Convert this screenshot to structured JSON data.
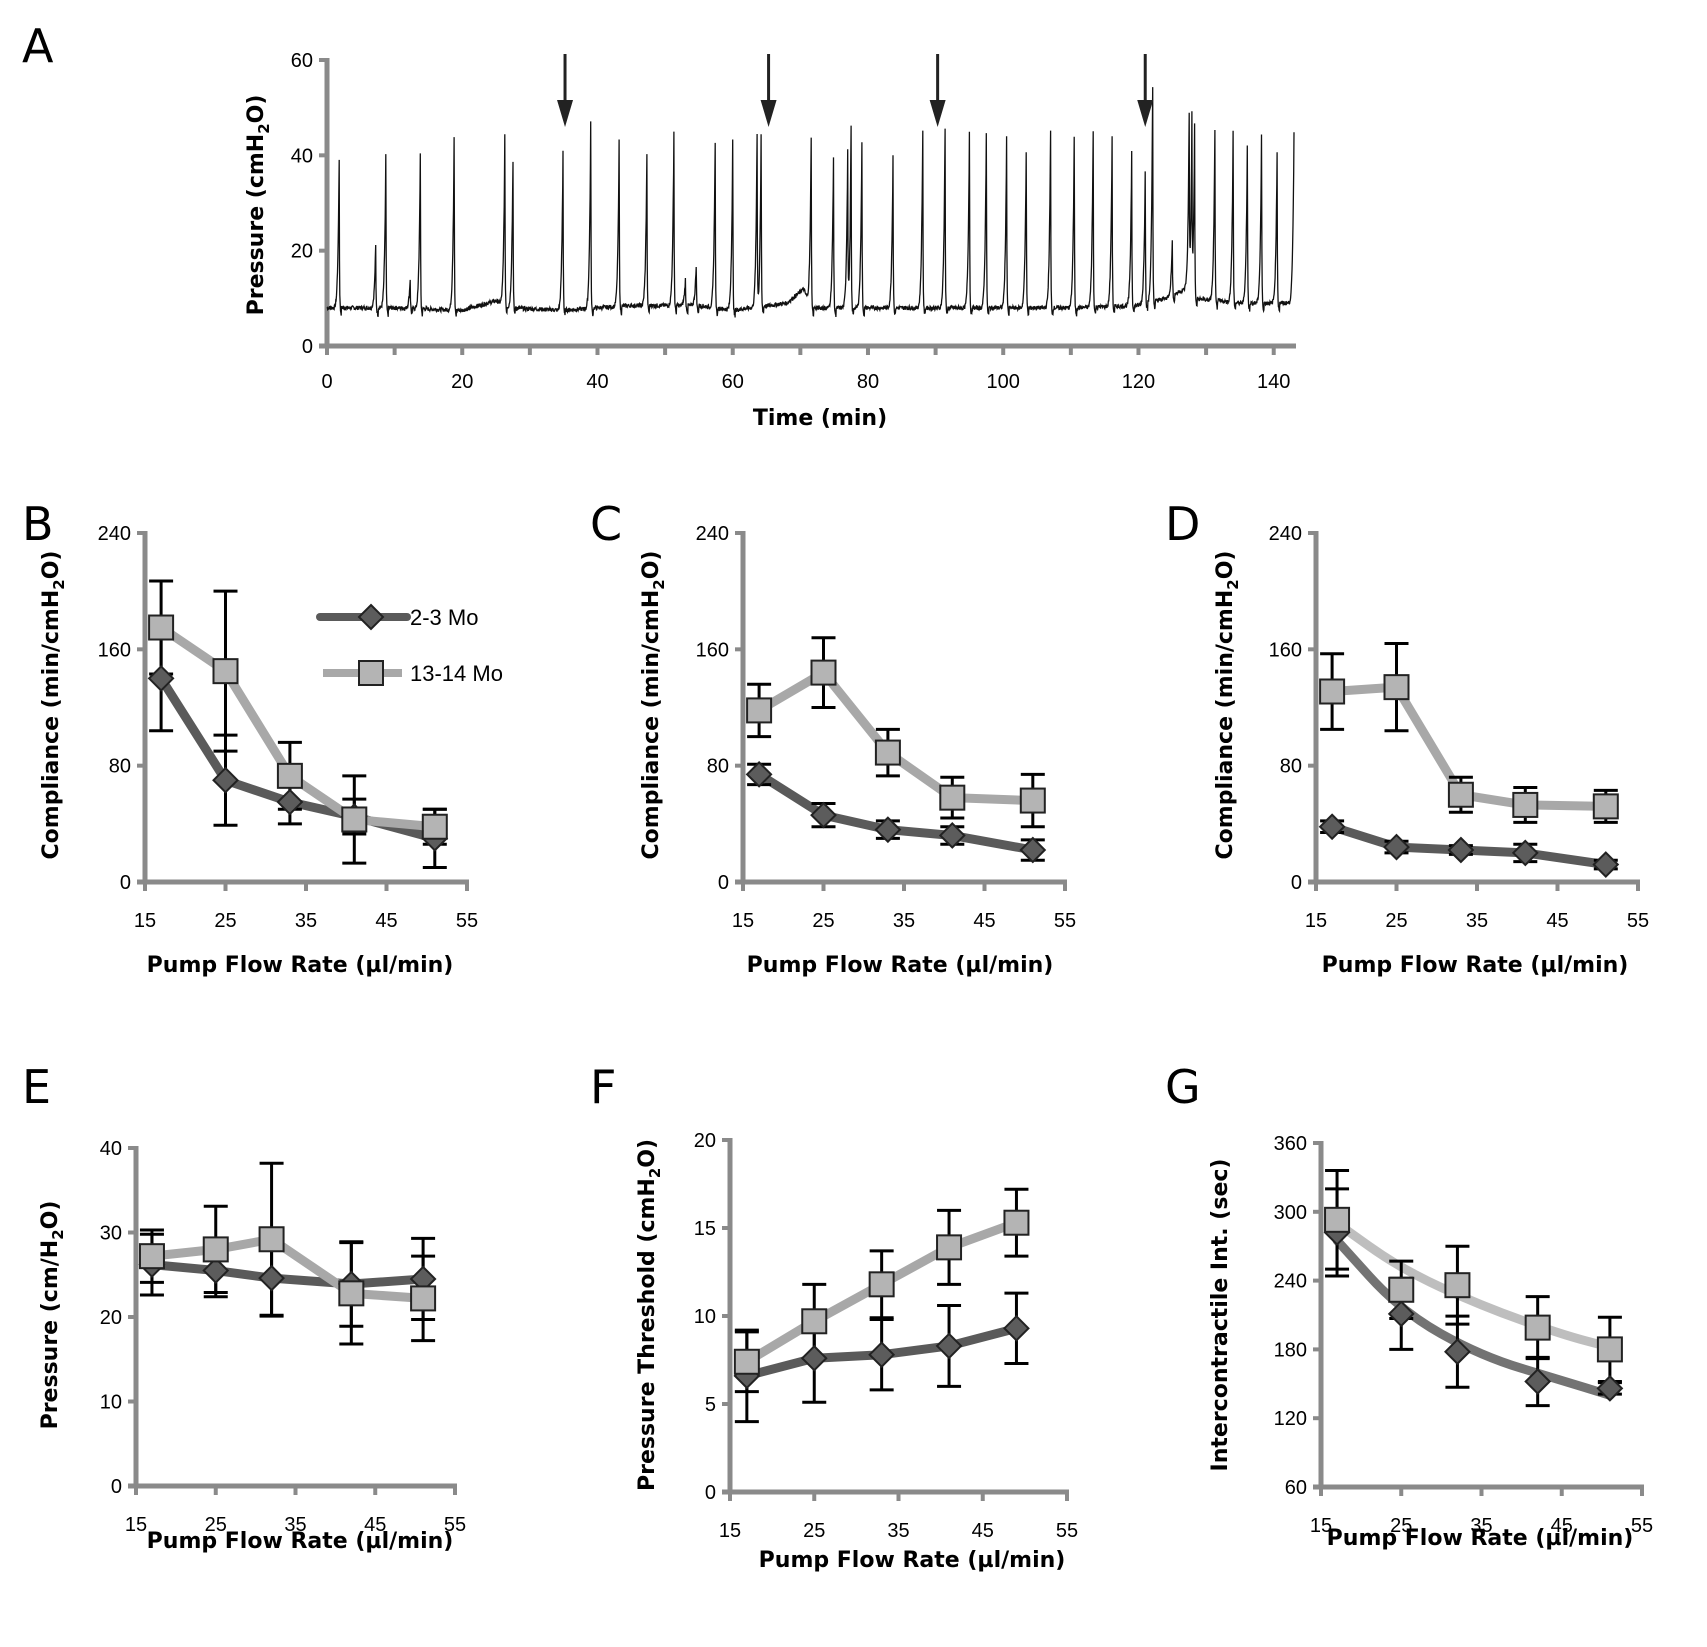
{
  "figure": {
    "colors": {
      "axis": "#8a8a8a",
      "trace": "#111111",
      "arrow": "#222222",
      "young": "#5a5a5a",
      "old": "#a8a8a8",
      "young_marker": "#5c5c5c",
      "old_marker": "#b4b4b4",
      "errorbar": "#000000"
    },
    "legend": {
      "young_label": "2-3 Mo",
      "old_label": "13-14 Mo"
    }
  },
  "chart_data": [
    {
      "id": "A",
      "panel_label": "A",
      "type": "line",
      "title": "",
      "xlabel": "Time (min)",
      "ylabel": "Pressure (cmH2O)",
      "ylabel_parts": [
        "Pressure (cmH",
        "2",
        "O)"
      ],
      "xlim": [
        0,
        143
      ],
      "ylim": [
        0,
        60
      ],
      "xticks": [
        0,
        20,
        40,
        60,
        80,
        100,
        120,
        140
      ],
      "xticks_minor": [
        10,
        30,
        50,
        70,
        90,
        110,
        130
      ],
      "yticks": [
        0,
        20,
        40,
        60
      ],
      "baseline_cmH2O": [
        [
          0,
          8
        ],
        [
          10,
          8
        ],
        [
          20,
          7.5
        ],
        [
          25,
          9.5
        ],
        [
          27,
          8
        ],
        [
          35,
          7.5
        ],
        [
          45,
          8.5
        ],
        [
          55,
          8.5
        ],
        [
          60,
          7.5
        ],
        [
          68,
          9
        ],
        [
          70.5,
          12
        ],
        [
          71.5,
          8
        ],
        [
          80,
          8
        ],
        [
          90,
          8
        ],
        [
          100,
          8
        ],
        [
          110,
          8
        ],
        [
          120,
          8.5
        ],
        [
          124,
          10
        ],
        [
          127,
          12
        ],
        [
          128,
          10
        ],
        [
          135,
          9
        ],
        [
          143,
          9
        ]
      ],
      "contraction_peaks": [
        {
          "t": 1.8,
          "p": 39
        },
        {
          "t": 7.2,
          "p": 21
        },
        {
          "t": 8.7,
          "p": 40
        },
        {
          "t": 12.3,
          "p": 14
        },
        {
          "t": 13.8,
          "p": 40
        },
        {
          "t": 18.8,
          "p": 44
        },
        {
          "t": 26.3,
          "p": 44
        },
        {
          "t": 27.5,
          "p": 39
        },
        {
          "t": 34.9,
          "p": 41
        },
        {
          "t": 39.0,
          "p": 47
        },
        {
          "t": 43.2,
          "p": 43
        },
        {
          "t": 47.3,
          "p": 40
        },
        {
          "t": 51.3,
          "p": 45
        },
        {
          "t": 53.0,
          "p": 14
        },
        {
          "t": 54.6,
          "p": 17
        },
        {
          "t": 57.4,
          "p": 43
        },
        {
          "t": 60.0,
          "p": 43
        },
        {
          "t": 63.6,
          "p": 44
        },
        {
          "t": 64.2,
          "p": 44
        },
        {
          "t": 71.6,
          "p": 44
        },
        {
          "t": 74.9,
          "p": 40
        },
        {
          "t": 77.0,
          "p": 40
        },
        {
          "t": 77.5,
          "p": 46
        },
        {
          "t": 79.1,
          "p": 43
        },
        {
          "t": 83.7,
          "p": 40
        },
        {
          "t": 88.1,
          "p": 45
        },
        {
          "t": 91.4,
          "p": 46
        },
        {
          "t": 95.0,
          "p": 45
        },
        {
          "t": 97.5,
          "p": 45
        },
        {
          "t": 100.5,
          "p": 44
        },
        {
          "t": 103.4,
          "p": 41
        },
        {
          "t": 107.0,
          "p": 45
        },
        {
          "t": 110.5,
          "p": 44
        },
        {
          "t": 113.3,
          "p": 45
        },
        {
          "t": 116.1,
          "p": 44
        },
        {
          "t": 119.0,
          "p": 41
        },
        {
          "t": 121.0,
          "p": 37
        },
        {
          "t": 122.1,
          "p": 54
        },
        {
          "t": 125.0,
          "p": 22
        },
        {
          "t": 127.5,
          "p": 46
        },
        {
          "t": 127.9,
          "p": 46
        },
        {
          "t": 128.3,
          "p": 47
        },
        {
          "t": 131.3,
          "p": 45
        },
        {
          "t": 134.0,
          "p": 45
        },
        {
          "t": 136.1,
          "p": 42
        },
        {
          "t": 138.2,
          "p": 44
        },
        {
          "t": 140.5,
          "p": 41
        },
        {
          "t": 143.0,
          "p": 45
        }
      ],
      "arrows_at_min": [
        35.2,
        65.3,
        90.3,
        121.0
      ]
    },
    {
      "id": "B",
      "panel_label": "B",
      "type": "line",
      "xlabel": "Pump Flow Rate (µl/min)",
      "ylabel": "Compliance  (min/cmH2O)",
      "ylabel_parts": [
        "Compliance  (min/cmH",
        "2",
        "O)"
      ],
      "xlim": [
        15,
        55
      ],
      "ylim": [
        0,
        240
      ],
      "xticks": [
        15,
        25,
        35,
        45,
        55
      ],
      "yticks": [
        0,
        80,
        160,
        240
      ],
      "legend": "top-right",
      "series": [
        {
          "name": "2-3 Mo",
          "marker": "diamond",
          "x": [
            17,
            25,
            33,
            41,
            51
          ],
          "y": [
            140,
            70,
            55,
            45,
            30
          ],
          "err": [
            36,
            31,
            15,
            12,
            20
          ]
        },
        {
          "name": "13-14 Mo",
          "marker": "square",
          "x": [
            17,
            25,
            33,
            41,
            51
          ],
          "y": [
            175,
            145,
            73,
            43,
            38
          ],
          "err": [
            32,
            55,
            23,
            30,
            12
          ]
        }
      ]
    },
    {
      "id": "C",
      "panel_label": "C",
      "type": "line",
      "xlabel": "Pump Flow Rate (µl/min)",
      "ylabel": "Compliance (min/cmH2O)",
      "ylabel_parts": [
        "Compliance (min/cmH",
        "2",
        "O)"
      ],
      "xlim": [
        15,
        55
      ],
      "ylim": [
        0,
        240
      ],
      "xticks": [
        15,
        25,
        35,
        45,
        55
      ],
      "yticks": [
        0,
        80,
        160,
        240
      ],
      "series": [
        {
          "name": "2-3 Mo",
          "marker": "diamond",
          "x": [
            17,
            25,
            33,
            41,
            51
          ],
          "y": [
            74,
            46,
            36,
            32,
            22
          ],
          "err": [
            7,
            8,
            6,
            6,
            7
          ]
        },
        {
          "name": "13-14 Mo",
          "marker": "square",
          "x": [
            17,
            25,
            33,
            41,
            51
          ],
          "y": [
            118,
            144,
            89,
            58,
            56
          ],
          "err": [
            18,
            24,
            16,
            14,
            18
          ]
        }
      ]
    },
    {
      "id": "D",
      "panel_label": "D",
      "type": "line",
      "xlabel": "Pump Flow Rate (µl/min)",
      "ylabel": "Compliance (min/cmH2O)",
      "ylabel_parts": [
        "Compliance (min/cmH",
        "2",
        "O)"
      ],
      "xlim": [
        15,
        55
      ],
      "ylim": [
        0,
        240
      ],
      "xticks": [
        15,
        25,
        35,
        45,
        55
      ],
      "yticks": [
        0,
        80,
        160,
        240
      ],
      "series": [
        {
          "name": "2-3 Mo",
          "marker": "diamond",
          "x": [
            17,
            25,
            33,
            41,
            51
          ],
          "y": [
            38,
            24,
            22,
            20,
            12
          ],
          "err": [
            4,
            4,
            3,
            6,
            3
          ]
        },
        {
          "name": "13-14 Mo",
          "marker": "square",
          "x": [
            17,
            25,
            33,
            41,
            51
          ],
          "y": [
            131,
            134,
            60,
            53,
            52
          ],
          "err": [
            26,
            30,
            12,
            12,
            11
          ]
        }
      ]
    },
    {
      "id": "E",
      "panel_label": "E",
      "type": "line",
      "xlabel": "Pump Flow Rate (µl/min)",
      "ylabel": "Pressure (cm/H2O)",
      "ylabel_parts": [
        "Pressure (cm/H",
        "2",
        "O)"
      ],
      "xlim": [
        15,
        55
      ],
      "ylim": [
        0,
        40
      ],
      "xticks": [
        15,
        25,
        35,
        45,
        55
      ],
      "yticks": [
        0,
        10,
        20,
        30,
        40
      ],
      "series": [
        {
          "name": "2-3 Mo",
          "marker": "diamond",
          "x": [
            17,
            25,
            32,
            42,
            51
          ],
          "y": [
            26.2,
            25.5,
            24.6,
            23.9,
            24.5
          ],
          "err": [
            3.6,
            3.1,
            4.5,
            5.0,
            4.8
          ]
        },
        {
          "name": "13-14 Mo",
          "marker": "square",
          "x": [
            17,
            25,
            32,
            42,
            51
          ],
          "y": [
            27.2,
            28.0,
            29.2,
            22.8,
            22.2
          ],
          "err": [
            3.1,
            5.1,
            9.0,
            6.0,
            5.0
          ]
        }
      ]
    },
    {
      "id": "F",
      "panel_label": "F",
      "type": "line",
      "xlabel": "Pump Flow Rate (µl/min)",
      "ylabel": "Pressure Threshold (cmH2O)",
      "ylabel_parts": [
        "Pressure Threshold (cmH",
        "2",
        "O)"
      ],
      "xlim": [
        15,
        55
      ],
      "ylim": [
        0,
        20
      ],
      "xticks": [
        15,
        25,
        35,
        45,
        55
      ],
      "yticks": [
        0,
        5,
        10,
        15,
        20
      ],
      "series": [
        {
          "name": "2-3 Mo",
          "marker": "diamond",
          "x": [
            17,
            25,
            33,
            41,
            49
          ],
          "y": [
            6.6,
            7.6,
            7.8,
            8.3,
            9.3
          ],
          "err": [
            2.6,
            2.5,
            2.0,
            2.3,
            2.0
          ]
        },
        {
          "name": "13-14 Mo",
          "marker": "square",
          "x": [
            17,
            25,
            33,
            41,
            49
          ],
          "y": [
            7.4,
            9.7,
            11.8,
            13.9,
            15.3
          ],
          "err": [
            1.7,
            2.1,
            1.9,
            2.1,
            1.9
          ]
        }
      ]
    },
    {
      "id": "G",
      "panel_label": "G",
      "type": "scatter",
      "xlabel": "Pump Flow Rate (µl/min)",
      "ylabel": "Intercontractile Int. (sec)",
      "ylabel_parts": [
        "Intercontractile Int. (sec)",
        "",
        ""
      ],
      "xlim": [
        15,
        55
      ],
      "ylim": [
        60,
        360
      ],
      "xticks": [
        15,
        25,
        35,
        45,
        55
      ],
      "yticks": [
        60,
        120,
        180,
        240,
        300,
        360
      ],
      "trendline": "power-law fit per series",
      "series": [
        {
          "name": "2-3 Mo",
          "marker": "diamond",
          "x": [
            17,
            25,
            32,
            42,
            51
          ],
          "y": [
            282,
            211,
            178,
            152,
            146
          ],
          "err": [
            38,
            31,
            31,
            21,
            5
          ],
          "fit": [
            [
              17,
              275
            ],
            [
              25,
              213
            ],
            [
              35,
              174
            ],
            [
              45,
              153
            ],
            [
              51,
              140
            ]
          ]
        },
        {
          "name": "13-14 Mo",
          "marker": "square",
          "x": [
            17,
            25,
            32,
            42,
            51
          ],
          "y": [
            293,
            232,
            236,
            199,
            180
          ],
          "err": [
            43,
            25,
            34,
            27,
            28
          ],
          "fit": [
            [
              17,
              290
            ],
            [
              25,
              250
            ],
            [
              35,
              218
            ],
            [
              45,
              193
            ],
            [
              51,
              182
            ]
          ]
        }
      ]
    }
  ]
}
